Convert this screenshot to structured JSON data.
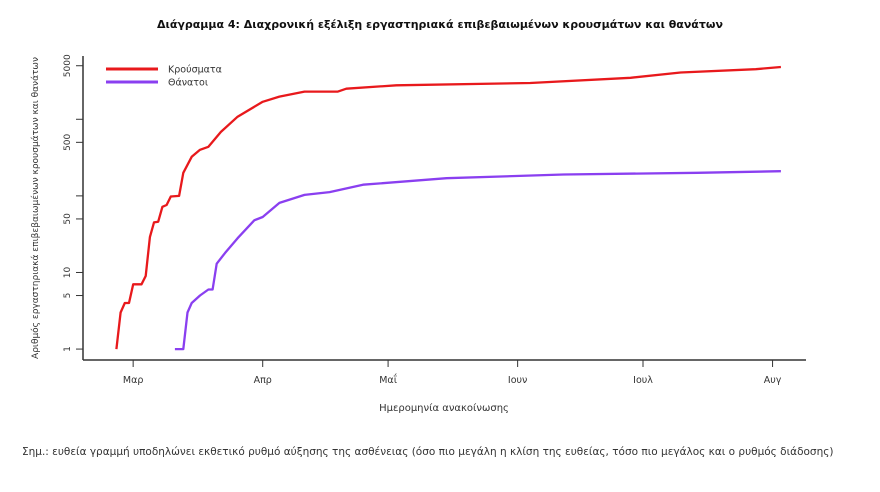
{
  "chart_data": {
    "type": "line",
    "title": "Διάγραμμα 4: Διαχρονική εξέλιξη εργαστηριακά επιβεβαιωμένων κρουσμάτων και θανάτων",
    "xlabel": "Ημερομηνία ανακοίνωσης",
    "ylabel": "Αριθμός εργαστηριακά επιβεβαιωμένων κρουσμάτων και θανάτων",
    "yscale": "log",
    "ylim": [
      0.72,
      6700
    ],
    "xlim": [
      "02-18",
      "08-09"
    ],
    "grid": false,
    "legend_position": "top-left",
    "x_ticks": [
      {
        "date": "03-01",
        "label": "Μαρ"
      },
      {
        "date": "04-01",
        "label": "Απρ"
      },
      {
        "date": "05-01",
        "label": "Μαΐ"
      },
      {
        "date": "06-01",
        "label": "Ιουν"
      },
      {
        "date": "07-01",
        "label": "Ιουλ"
      },
      {
        "date": "08-01",
        "label": "Αυγ"
      }
    ],
    "y_ticks": [
      {
        "value": 1,
        "label": "1"
      },
      {
        "value": 5,
        "label": "5"
      },
      {
        "value": 10,
        "label": "10"
      },
      {
        "value": 50,
        "label": "50"
      },
      {
        "value": 100,
        "label": ""
      },
      {
        "value": 500,
        "label": "500"
      },
      {
        "value": 1000,
        "label": ""
      },
      {
        "value": 5000,
        "label": "5000"
      }
    ],
    "series": [
      {
        "name": "Κρούσματα",
        "color": "#e8191c",
        "points": [
          [
            "02-26",
            1
          ],
          [
            "02-27",
            3
          ],
          [
            "02-28",
            4
          ],
          [
            "02-29",
            4
          ],
          [
            "03-01",
            7
          ],
          [
            "03-03",
            7
          ],
          [
            "03-04",
            9
          ],
          [
            "03-05",
            29
          ],
          [
            "03-06",
            45
          ],
          [
            "03-07",
            46
          ],
          [
            "03-08",
            72
          ],
          [
            "03-09",
            76
          ],
          [
            "03-10",
            98
          ],
          [
            "03-12",
            100
          ],
          [
            "03-13",
            200
          ],
          [
            "03-15",
            324
          ],
          [
            "03-17",
            400
          ],
          [
            "03-19",
            437
          ],
          [
            "03-22",
            685
          ],
          [
            "03-26",
            1080
          ],
          [
            "04-01",
            1690
          ],
          [
            "04-05",
            1980
          ],
          [
            "04-11",
            2300
          ],
          [
            "04-19",
            2300
          ],
          [
            "04-21",
            2510
          ],
          [
            "05-03",
            2780
          ],
          [
            "06-04",
            2980
          ],
          [
            "06-28",
            3480
          ],
          [
            "07-10",
            4080
          ],
          [
            "07-28",
            4500
          ],
          [
            "08-03",
            4820
          ]
        ]
      },
      {
        "name": "Θάνατοι",
        "color": "#8a3ff0",
        "points": [
          [
            "03-11",
            1
          ],
          [
            "03-13",
            1
          ],
          [
            "03-14",
            3
          ],
          [
            "03-15",
            4
          ],
          [
            "03-17",
            5
          ],
          [
            "03-19",
            6
          ],
          [
            "03-20",
            6
          ],
          [
            "03-21",
            13
          ],
          [
            "03-23",
            18
          ],
          [
            "03-26",
            28
          ],
          [
            "03-30",
            48
          ],
          [
            "04-01",
            53
          ],
          [
            "04-05",
            81
          ],
          [
            "04-11",
            103
          ],
          [
            "04-17",
            112
          ],
          [
            "04-25",
            140
          ],
          [
            "05-15",
            170
          ],
          [
            "06-12",
            190
          ],
          [
            "07-14",
            200
          ],
          [
            "08-03",
            210
          ]
        ]
      }
    ]
  },
  "note": "Σημ.: ευθεία γραμμή υποδηλώνει εκθετικό ρυθμό αύξησης της ασθένειας (όσο πιο μεγάλη η κλίση της ευθείας, τόσο πιο μεγάλος και ο ρυθμός διάδοσης)"
}
